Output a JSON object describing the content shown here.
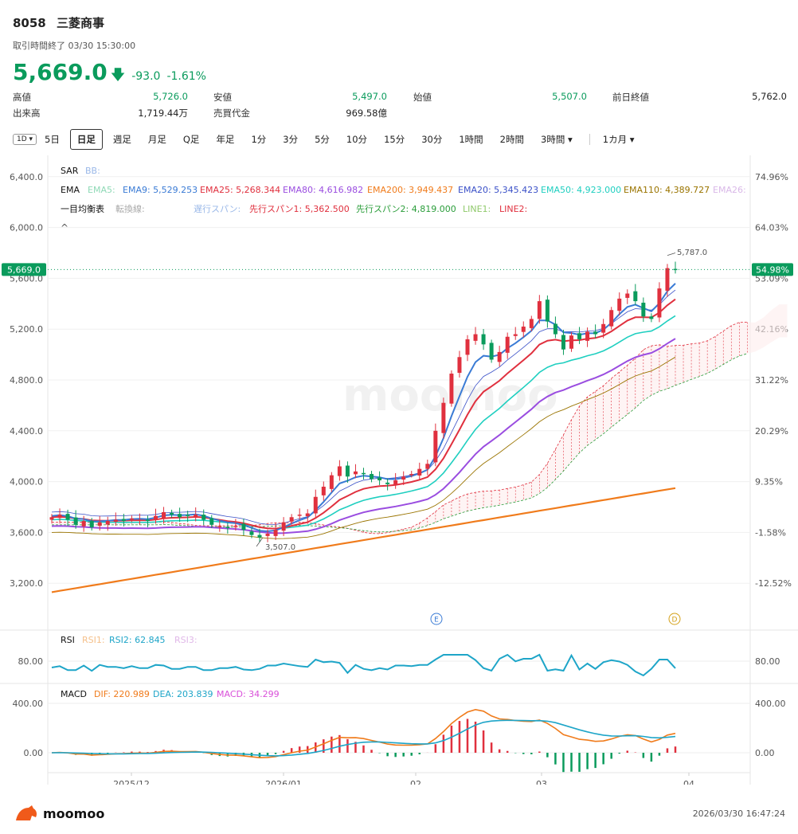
{
  "header": {
    "code": "8058",
    "name": "三菱商事",
    "status": "取引時間終了 03/30 15:30:00"
  },
  "quote": {
    "price": "5,669.0",
    "arrow": "🡇",
    "change": "-93.0",
    "change_pct": "-1.61%"
  },
  "stats": {
    "high_label": "高値",
    "high": "5,726.0",
    "low_label": "安値",
    "low": "5,497.0",
    "open_label": "始値",
    "open": "5,507.0",
    "prev_label": "前日終値",
    "prev": "5,762.0",
    "vol_label": "出来高",
    "vol": "1,719.44万",
    "turn_label": "売買代金",
    "turn": "969.58億"
  },
  "tabs": [
    "5日",
    "日足",
    "週足",
    "月足",
    "Q足",
    "年足",
    "1分",
    "3分",
    "5分",
    "10分",
    "15分",
    "30分",
    "1時間",
    "2時間",
    "3時間 ▾",
    "1カ月 ▾"
  ],
  "tab_icon": "1D ▾",
  "active_tab": "日足",
  "legend": {
    "sar": "SAR",
    "bb": "BB:",
    "ema": "EMA",
    "ema_items": [
      {
        "t": "EMA5:",
        "c": "#8fd9b6"
      },
      {
        "t": "EMA9: 5,529.253",
        "c": "#3a7bd5"
      },
      {
        "t": "EMA25: 5,268.344",
        "c": "#e0303e"
      },
      {
        "t": "EMA80: 4,616.982",
        "c": "#9a4de0"
      },
      {
        "t": "EMA200: 3,949.437",
        "c": "#f07b1b"
      },
      {
        "t": "EMA20: 5,345.423",
        "c": "#3a50c8"
      },
      {
        "t": "EMA50: 4,923.000",
        "c": "#1fcfc0"
      },
      {
        "t": "EMA110: 4,389.727",
        "c": "#9a7400"
      },
      {
        "t": "EMA26:",
        "c": "#d9b8e8"
      }
    ],
    "ichimoku": "一目均衡表",
    "ichi_items": [
      {
        "t": "転換線:",
        "c": "#aaaaaa"
      },
      {
        "t": "遅行スパン:",
        "c": "#9ab8e8"
      },
      {
        "t": "先行スパン1: 5,362.500",
        "c": "#e0303e"
      },
      {
        "t": "先行スパン2: 4,819.000",
        "c": "#2a9d3a"
      },
      {
        "t": "LINE1:",
        "c": "#8fc96a"
      },
      {
        "t": "LINE2:",
        "c": "#e0303e"
      }
    ],
    "caret": "^",
    "rsi": "RSI",
    "rsi_items": [
      {
        "t": "RSI1:",
        "c": "#f5c08a"
      },
      {
        "t": "RSI2: 62.845",
        "c": "#1ea5c8"
      },
      {
        "t": "RSI3:",
        "c": "#e0b8e8"
      }
    ],
    "macd": "MACD",
    "macd_items": [
      {
        "t": "DIF: 220.989",
        "c": "#f07b1b"
      },
      {
        "t": "DEA: 203.839",
        "c": "#1ea5c8"
      },
      {
        "t": "MACD: 34.299",
        "c": "#d94fd9"
      }
    ]
  },
  "chart_data": {
    "type": "candlestick",
    "y_left_ticks": [
      "6,400.0",
      "6,000.0",
      "5,600.0",
      "5,200.0",
      "4,800.0",
      "4,400.0",
      "4,000.0",
      "3,600.0",
      "3,200.0"
    ],
    "y_right_ticks": [
      "74.96%",
      "64.03%",
      "53.09%",
      "42.16%",
      "31.22%",
      "20.29%",
      "9.35%",
      "-1.58%",
      "-12.52%"
    ],
    "ylim": [
      3120,
      6480
    ],
    "last_price_left": "5,669.0",
    "last_price_right": "54.98%",
    "last_price": 5669,
    "high_marker": "5,787.0",
    "low_marker": "3,507.0",
    "x_labels": [
      "2025/12",
      "2026/01",
      "02",
      "03",
      "04"
    ],
    "events": [
      "E",
      "D"
    ],
    "rsi_ticks": [
      "80.00",
      "80.00"
    ],
    "macd_ticks_left": [
      "400.00",
      "0.00"
    ],
    "macd_ticks_right": [
      "400.00",
      "0.00"
    ],
    "closes": [
      3720,
      3740,
      3700,
      3660,
      3690,
      3640,
      3680,
      3690,
      3700,
      3690,
      3710,
      3700,
      3690,
      3730,
      3760,
      3740,
      3720,
      3730,
      3740,
      3700,
      3660,
      3650,
      3640,
      3650,
      3620,
      3580,
      3560,
      3590,
      3620,
      3680,
      3720,
      3740,
      3750,
      3880,
      3960,
      4050,
      4120,
      4040,
      4080,
      4060,
      4020,
      4010,
      3980,
      4010,
      4040,
      4060,
      4100,
      4140,
      4400,
      4620,
      4850,
      4980,
      5120,
      5160,
      5080,
      4960,
      5020,
      5140,
      5160,
      5220,
      5280,
      5420,
      5260,
      5160,
      5040,
      5150,
      5120,
      5180,
      5160,
      5240,
      5350,
      5440,
      5480,
      5420,
      5300,
      5280,
      5520,
      5680,
      5669
    ]
  },
  "footer": {
    "logo": "moomoo",
    "time": "2026/03/30 16:47:24"
  },
  "colors": {
    "up": "#e0303e",
    "down": "#0a9b5c"
  }
}
